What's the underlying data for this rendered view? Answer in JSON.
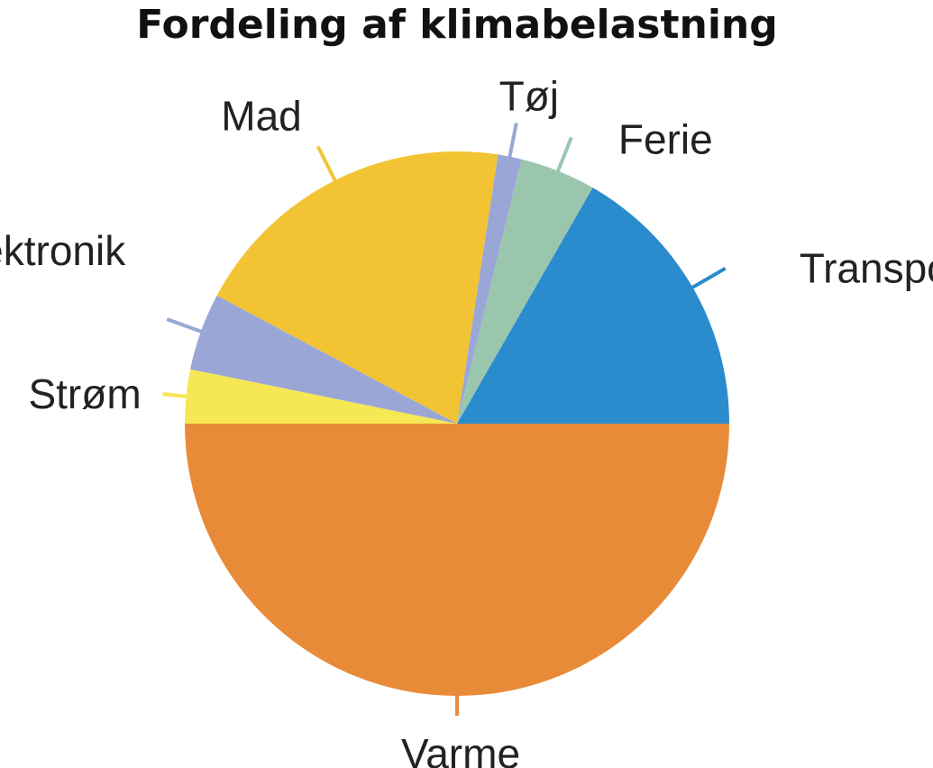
{
  "chart_data": {
    "type": "pie",
    "title": "Fordeling af klimabelastning",
    "start_angle_deg": 90,
    "direction": "counterclockwise",
    "slices": [
      {
        "label": "Transport",
        "value": 16.7,
        "color": "#2b8ccd"
      },
      {
        "label": "Ferie",
        "value": 4.5,
        "color": "#9bc6ae"
      },
      {
        "label": "Tøj",
        "value": 1.4,
        "color": "#9aa7d6"
      },
      {
        "label": "Mad",
        "value": 19.6,
        "color": "#f2c434"
      },
      {
        "label": "Elektronik",
        "value": 4.6,
        "color": "#9aa7d6"
      },
      {
        "label": "Strøm",
        "value": 3.2,
        "color": "#f6e754"
      },
      {
        "label": "Varme",
        "value": 50.0,
        "color": "#e88b38"
      }
    ]
  }
}
